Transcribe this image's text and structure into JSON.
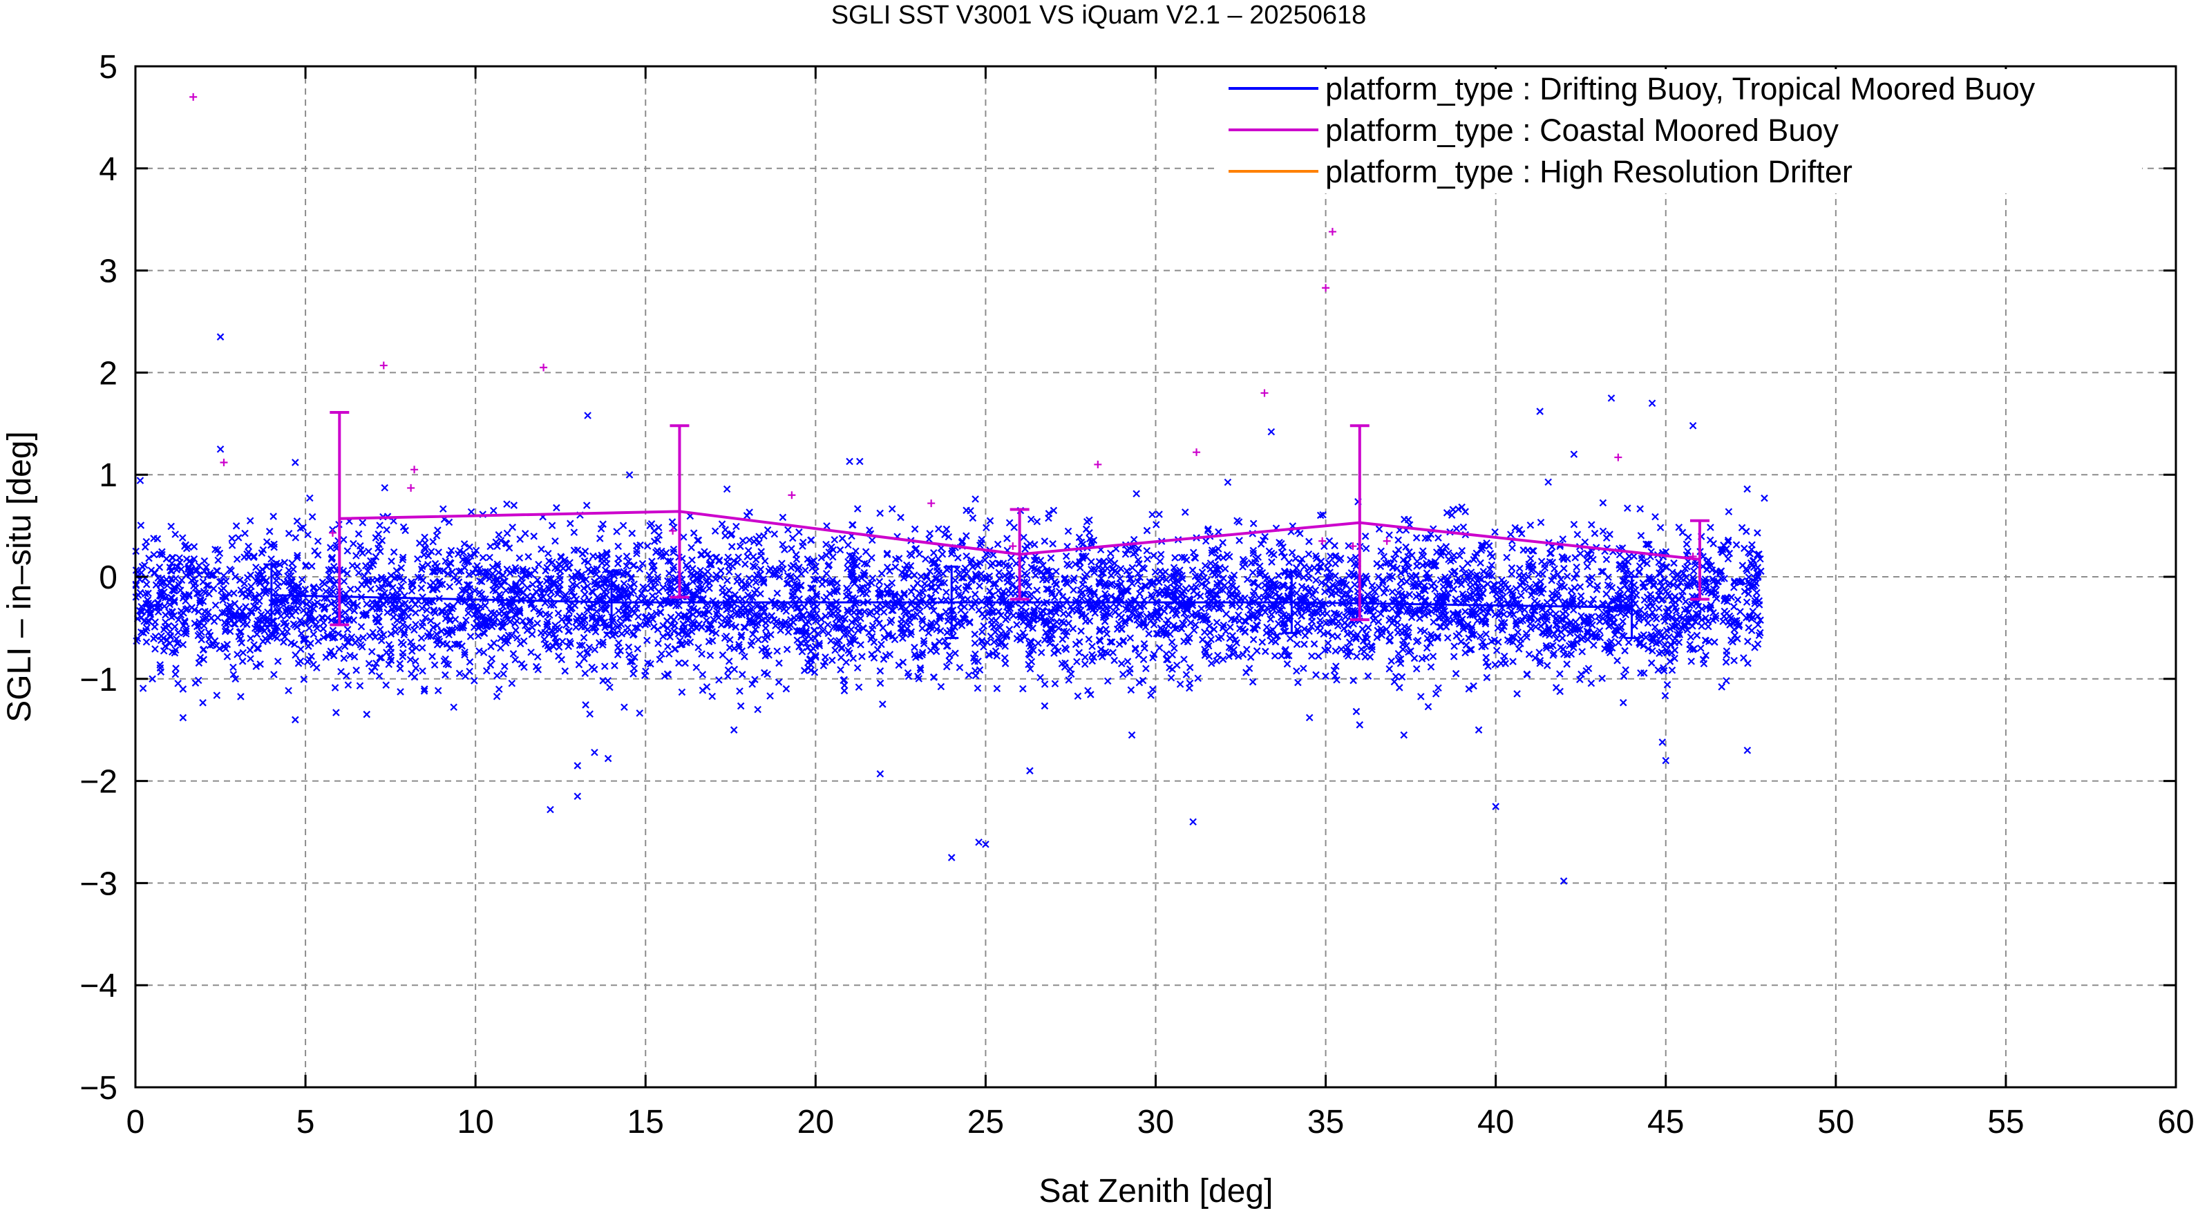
{
  "chart_data": {
    "type": "scatter",
    "title": "SGLI SST V3001 VS iQuam V2.1  – 20250618",
    "xlabel": "Sat Zenith [deg]",
    "ylabel": "SGLI – in–situ [deg]",
    "xlim": [
      0,
      60
    ],
    "ylim": [
      -5,
      5
    ],
    "x_ticks": [
      "0",
      "5",
      "10",
      "15",
      "20",
      "25",
      "30",
      "35",
      "40",
      "45",
      "50",
      "55",
      "60"
    ],
    "y_ticks": [
      "5",
      "4",
      "3",
      "2",
      "1",
      "0",
      "−1",
      "−2",
      "−3",
      "−4",
      "−5"
    ],
    "grid": true,
    "legend_position": "top-right",
    "legend": [
      {
        "label": "platform_type : Drifting Buoy, Tropical Moored Buoy",
        "color": "#0000ff"
      },
      {
        "label": "platform_type : Coastal Moored Buoy",
        "color": "#cc00cc"
      },
      {
        "label": "platform_type : High Resolution Drifter",
        "color": "#ff8000"
      }
    ],
    "series": [
      {
        "name": "platform_type : Drifting Buoy, Tropical Moored Buoy",
        "color": "#0000ff",
        "marker": "x",
        "x_range": [
          0,
          47.8
        ],
        "scatter_center": -0.25,
        "scatter_spread": 0.35,
        "bin_means": [
          {
            "x": 4,
            "mean": -0.18,
            "std": 0.3
          },
          {
            "x": 14,
            "mean": -0.25,
            "std": 0.3
          },
          {
            "x": 24,
            "mean": -0.25,
            "std": 0.35
          },
          {
            "x": 34,
            "mean": -0.25,
            "std": 0.3
          },
          {
            "x": 44,
            "mean": -0.3,
            "std": 0.3
          }
        ],
        "outliers": [
          [
            2.5,
            2.35
          ],
          [
            2.5,
            1.25
          ],
          [
            4.7,
            1.12
          ],
          [
            13.3,
            1.58
          ],
          [
            21.0,
            1.13
          ],
          [
            21.3,
            1.13
          ],
          [
            0.5,
            -1.0
          ],
          [
            1.4,
            -1.1
          ],
          [
            1.4,
            -1.38
          ],
          [
            4.7,
            -1.4
          ],
          [
            5.9,
            -1.33
          ],
          [
            12.2,
            -2.28
          ],
          [
            13.0,
            -1.85
          ],
          [
            13.0,
            -2.15
          ],
          [
            13.5,
            -1.72
          ],
          [
            13.9,
            -1.78
          ],
          [
            17.6,
            -1.5
          ],
          [
            21.9,
            -1.93
          ],
          [
            24.0,
            -2.75
          ],
          [
            24.8,
            -2.6
          ],
          [
            25.0,
            -2.62
          ],
          [
            26.3,
            -1.9
          ],
          [
            29.3,
            -1.55
          ],
          [
            31.1,
            -2.4
          ],
          [
            33.4,
            1.42
          ],
          [
            37.3,
            -1.55
          ],
          [
            40.0,
            -2.25
          ],
          [
            41.3,
            1.62
          ],
          [
            42.3,
            1.2
          ],
          [
            42.0,
            -2.98
          ],
          [
            43.4,
            1.75
          ],
          [
            44.6,
            1.7
          ],
          [
            45.8,
            1.48
          ],
          [
            44.9,
            -1.62
          ],
          [
            45.0,
            -1.8
          ],
          [
            47.4,
            -1.7
          ],
          [
            47.9,
            0.77
          ],
          [
            27.0,
            0.65
          ],
          [
            18.3,
            -1.3
          ],
          [
            8.5,
            -1.1
          ],
          [
            36.0,
            -1.45
          ],
          [
            39.5,
            -1.5
          ]
        ]
      },
      {
        "name": "platform_type : Coastal Moored Buoy",
        "color": "#cc00cc",
        "marker": "+",
        "x": [
          6,
          16,
          26,
          36,
          46
        ],
        "mean": [
          0.57,
          0.64,
          0.22,
          0.53,
          0.17
        ],
        "err_high": [
          1.61,
          1.48,
          0.66,
          1.48,
          0.55
        ],
        "err_low": [
          -0.47,
          -0.2,
          -0.22,
          -0.42,
          -0.22
        ],
        "points": [
          [
            1.7,
            4.7
          ],
          [
            2.6,
            1.12
          ],
          [
            7.3,
            2.07
          ],
          [
            12.0,
            2.05
          ],
          [
            8.2,
            1.05
          ],
          [
            8.1,
            0.87
          ],
          [
            19.3,
            0.8
          ],
          [
            23.4,
            0.72
          ],
          [
            28.3,
            1.1
          ],
          [
            31.2,
            1.22
          ],
          [
            33.2,
            1.8
          ],
          [
            35.0,
            2.83
          ],
          [
            35.2,
            3.38
          ],
          [
            43.6,
            1.17
          ],
          [
            5.8,
            0.43
          ],
          [
            15.8,
            0.45
          ],
          [
            25.8,
            0.3
          ],
          [
            35.8,
            0.3
          ],
          [
            45.8,
            0.2
          ],
          [
            34.9,
            0.35
          ],
          [
            36.8,
            0.35
          ]
        ]
      },
      {
        "name": "platform_type : High Resolution Drifter",
        "color": "#ff8000",
        "marker": "+",
        "points": []
      }
    ]
  }
}
